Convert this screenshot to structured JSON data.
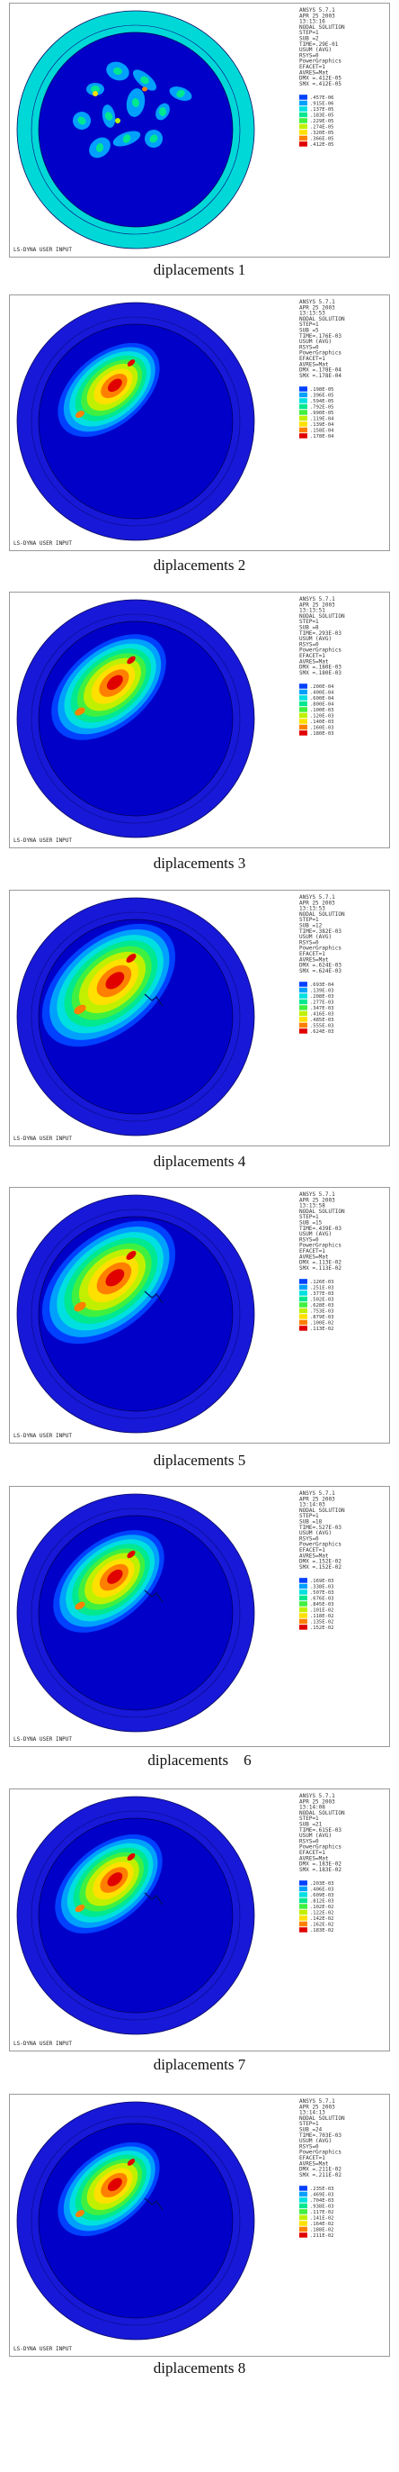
{
  "figures": [
    {
      "caption": "diplacements 1",
      "header": [
        "ANSYS 5.7.1",
        "APR 25 2003",
        "13:13:16",
        "NODAL SOLUTION",
        "STEP=1",
        "SUB =2",
        "TIME=.29E-01",
        "USUM    (AVG)",
        "RSYS=0",
        "PowerGraphics",
        "EFACET=1",
        "AVRES=Mat",
        "DMX =.412E-05",
        "SMX =.412E-05"
      ],
      "legend": [
        ".457E-06",
        ".915E-06",
        ".137E-05",
        ".183E-05",
        ".229E-05",
        ".274E-05",
        ".320E-05",
        ".366E-05",
        ".412E-05"
      ],
      "footer": "LS-DYNA USER INPUT"
    },
    {
      "caption": "diplacements 2",
      "header": [
        "ANSYS 5.7.1",
        "APR 25 2003",
        "13:13:53",
        "NODAL SOLUTION",
        "STEP=1",
        "SUB =5",
        "TIME=.176E-03",
        "USUM    (AVG)",
        "RSYS=0",
        "PowerGraphics",
        "EFACET=1",
        "AVRES=Mat",
        "DMX =.178E-04",
        "SMX =.178E-04"
      ],
      "legend": [
        ".198E-05",
        ".396E-05",
        ".594E-05",
        ".792E-05",
        ".990E-05",
        ".119E-04",
        ".139E-04",
        ".158E-04",
        ".178E-04"
      ],
      "footer": "LS-DYNA USER INPUT"
    },
    {
      "caption": "diplacements 3",
      "header": [
        "ANSYS 5.7.1",
        "APR 25 2003",
        "13:13:51",
        "NODAL SOLUTION",
        "STEP=1",
        "SUB =8",
        "TIME=.293E-03",
        "USUM    (AVG)",
        "RSYS=0",
        "PowerGraphics",
        "EFACET=1",
        "AVRES=Mat",
        "DMX =.180E-03",
        "SMX =.180E-03"
      ],
      "legend": [
        ".200E-04",
        ".400E-04",
        ".600E-04",
        ".800E-04",
        ".100E-03",
        ".120E-03",
        ".140E-03",
        ".160E-03",
        ".180E-03"
      ],
      "footer": "LS-DYNA USER INPUT"
    },
    {
      "caption": "diplacements 4",
      "header": [
        "ANSYS 5.7.1",
        "APR 25 2003",
        "13:13:53",
        "NODAL SOLUTION",
        "STEP=1",
        "SUB =12",
        "TIME=.382E-03",
        "USUM    (AVG)",
        "RSYS=0",
        "PowerGraphics",
        "EFACET=1",
        "AVRES=Mat",
        "DMX =.624E-03",
        "SMX =.624E-03"
      ],
      "legend": [
        ".693E-04",
        ".139E-03",
        ".208E-03",
        ".277E-03",
        ".347E-03",
        ".416E-03",
        ".485E-03",
        ".555E-03",
        ".624E-03"
      ],
      "footer": "LS-DYNA USER INPUT"
    },
    {
      "caption": "diplacements 5",
      "header": [
        "ANSYS 5.7.1",
        "APR 25 2003",
        "13:13:58",
        "NODAL SOLUTION",
        "STEP=1",
        "SUB =15",
        "TIME=.439E-03",
        "USUM    (AVG)",
        "RSYS=0",
        "PowerGraphics",
        "EFACET=1",
        "AVRES=Mat",
        "DMX =.113E-02",
        "SMX =.113E-02"
      ],
      "legend": [
        ".126E-03",
        ".251E-03",
        ".377E-03",
        ".502E-03",
        ".628E-03",
        ".753E-03",
        ".879E-03",
        ".100E-02",
        ".113E-02"
      ],
      "footer": "LS-DYNA USER INPUT"
    },
    {
      "caption": "diplacements    6",
      "header": [
        "ANSYS 5.7.1",
        "APR 25 2003",
        "13:14:03",
        "NODAL SOLUTION",
        "STEP=1",
        "SUB =18",
        "TIME=.527E-03",
        "USUM    (AVG)",
        "RSYS=0",
        "PowerGraphics",
        "EFACET=1",
        "AVRES=Mat",
        "DMX =.152E-02",
        "SMX =.152E-02"
      ],
      "legend": [
        ".169E-03",
        ".338E-03",
        ".507E-03",
        ".676E-03",
        ".845E-03",
        ".101E-02",
        ".118E-02",
        ".135E-02",
        ".152E-02"
      ],
      "footer": "LS-DYNA USER INPUT"
    },
    {
      "caption": "diplacements 7",
      "header": [
        "ANSYS 5.7.1",
        "APR 25 2003",
        "13:14:08",
        "NODAL SOLUTION",
        "STEP=1",
        "SUB =21",
        "TIME=.615E-03",
        "USUM    (AVG)",
        "RSYS=0",
        "PowerGraphics",
        "EFACET=1",
        "AVRES=Mat",
        "DMX =.183E-02",
        "SMX =.183E-02"
      ],
      "legend": [
        ".203E-03",
        ".406E-03",
        ".609E-03",
        ".812E-03",
        ".102E-02",
        ".122E-02",
        ".142E-02",
        ".162E-02",
        ".183E-02"
      ],
      "footer": "LS-DYNA USER INPUT"
    },
    {
      "caption": "diplacements 8",
      "header": [
        "ANSYS 5.7.1",
        "APR 25 2003",
        "13:14:13",
        "NODAL SOLUTION",
        "STEP=1",
        "SUB =24",
        "TIME=.703E-03",
        "USUM    (AVG)",
        "RSYS=0",
        "PowerGraphics",
        "EFACET=1",
        "AVRES=Mat",
        "DMX =.211E-02",
        "SMX =.211E-02"
      ],
      "legend": [
        ".235E-03",
        ".469E-03",
        ".704E-03",
        ".938E-03",
        ".117E-02",
        ".141E-02",
        ".164E-02",
        ".188E-02",
        ".211E-02"
      ],
      "footer": "LS-DYNA USER INPUT"
    }
  ],
  "colors": {
    "scale": [
      "#0000c8",
      "#0040ff",
      "#00a0ff",
      "#00e0e0",
      "#00e890",
      "#40f040",
      "#c0f000",
      "#ffe000",
      "#ff8000",
      "#e00000"
    ],
    "rim_teal": "#00d8d8",
    "rim_blue": "#1818d8",
    "background": "#ffffff"
  }
}
